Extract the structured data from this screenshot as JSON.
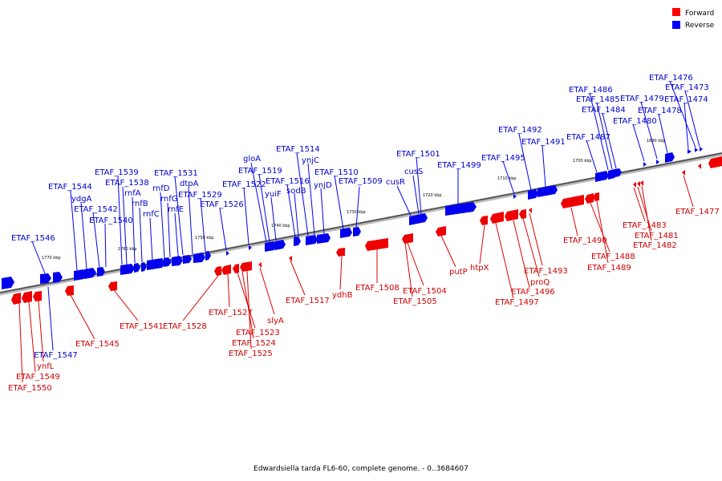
{
  "legend": {
    "forward": {
      "label": "Forward",
      "color": "#ff0000"
    },
    "reverse": {
      "label": "Reverse",
      "color": "#0000ff"
    }
  },
  "caption": "Edwardsiella tarda FL6-60, complete genome. - 0..3684607",
  "kbp_ticks": [
    "1770 kbp",
    "1760 kbp",
    "1750 kbp",
    "1740 kbp",
    "1730 kbp",
    "1720 kbp",
    "1710 kbp",
    "1700 kbp",
    "1690 kbp"
  ],
  "genes_reverse": [
    "ETAF_1546",
    "ETAF_1544",
    "ydgA",
    "ETAF_1542",
    "ETAF_1540",
    "ETAF_1539",
    "ETAF_1538",
    "rnfA",
    "rnfB",
    "rnfC",
    "rnfD",
    "rnfG",
    "rnfE",
    "ETAF_1531",
    "dtpA",
    "ETAF_1529",
    "ETAF_1526",
    "ETAF_1522",
    "gloA",
    "ETAF_1519",
    "yuiF",
    "ETAF_1516",
    "ETAF_1514",
    "ynjC",
    "sodB",
    "ynjD",
    "ETAF_1510",
    "ETAF_1509",
    "cusR",
    "cusS",
    "ETAF_1501",
    "ETAF_1499",
    "ETAF_1495",
    "ETAF_1492",
    "ETAF_1491",
    "ETAF_1487",
    "ETAF_1486",
    "ETAF_1485",
    "ETAF_1484",
    "ETAF_1480",
    "ETAF_1479",
    "ETAF_1478",
    "ETAF_1476",
    "ETAF_1473",
    "ETAF_1474",
    "ETAF_1547"
  ],
  "genes_forward": [
    "ETAF_1550",
    "ETAF_1549",
    "ynfL",
    "ETAF_1545",
    "ETAF_1541",
    "ETAF_1528",
    "ETAF_1527",
    "ETAF_1523",
    "ETAF_1524",
    "ETAF_1525",
    "slyA",
    "ETAF_1517",
    "ydhB",
    "ETAF_1508",
    "ETAF_1504",
    "ETAF_1505",
    "putP",
    "htpX",
    "ETAF_1497",
    "ETAF_1496",
    "proQ",
    "ETAF_1493",
    "ETAF_1490",
    "ETAF_1488",
    "ETAF_1489",
    "ETAF_1483",
    "ETAF_1481",
    "ETAF_1482",
    "ETAF_1477"
  ]
}
